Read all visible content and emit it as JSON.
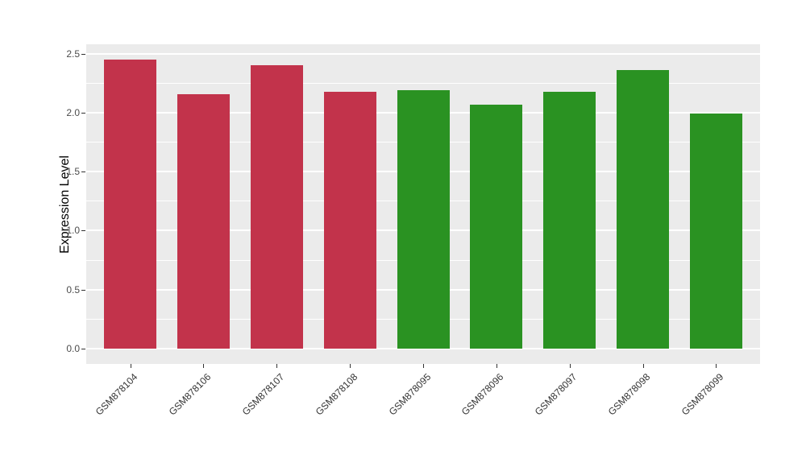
{
  "chart_data": {
    "type": "bar",
    "title": "",
    "xlabel": "",
    "ylabel": "Expression Level",
    "categories": [
      "GSM878104",
      "GSM878106",
      "GSM878107",
      "GSM878108",
      "GSM878095",
      "GSM878096",
      "GSM878097",
      "GSM878098",
      "GSM878099"
    ],
    "values": [
      2.45,
      2.16,
      2.4,
      2.18,
      2.19,
      2.07,
      2.18,
      2.36,
      1.99
    ],
    "bar_colors": [
      "#C2334B",
      "#C2334B",
      "#C2334B",
      "#C2334B",
      "#2A9222",
      "#2A9222",
      "#2A9222",
      "#2A9222",
      "#2A9222"
    ],
    "group_colors": {
      "red_group": "#C2334B",
      "green_group": "#2A9222"
    },
    "ylim": [
      -0.13,
      2.58
    ],
    "yticks": [
      0.0,
      0.5,
      1.0,
      1.5,
      2.0,
      2.5
    ],
    "ytick_labels": [
      "0.0",
      "0.5",
      "1.0",
      "1.5",
      "2.0",
      "2.5"
    ],
    "yticks_minor": [
      0.25,
      0.75,
      1.25,
      1.75,
      2.25
    ],
    "grid": true,
    "legend": false,
    "panel_bg": "#EBEBEB",
    "grid_color": "#FFFFFF",
    "x_label_rotation_deg": 45
  }
}
